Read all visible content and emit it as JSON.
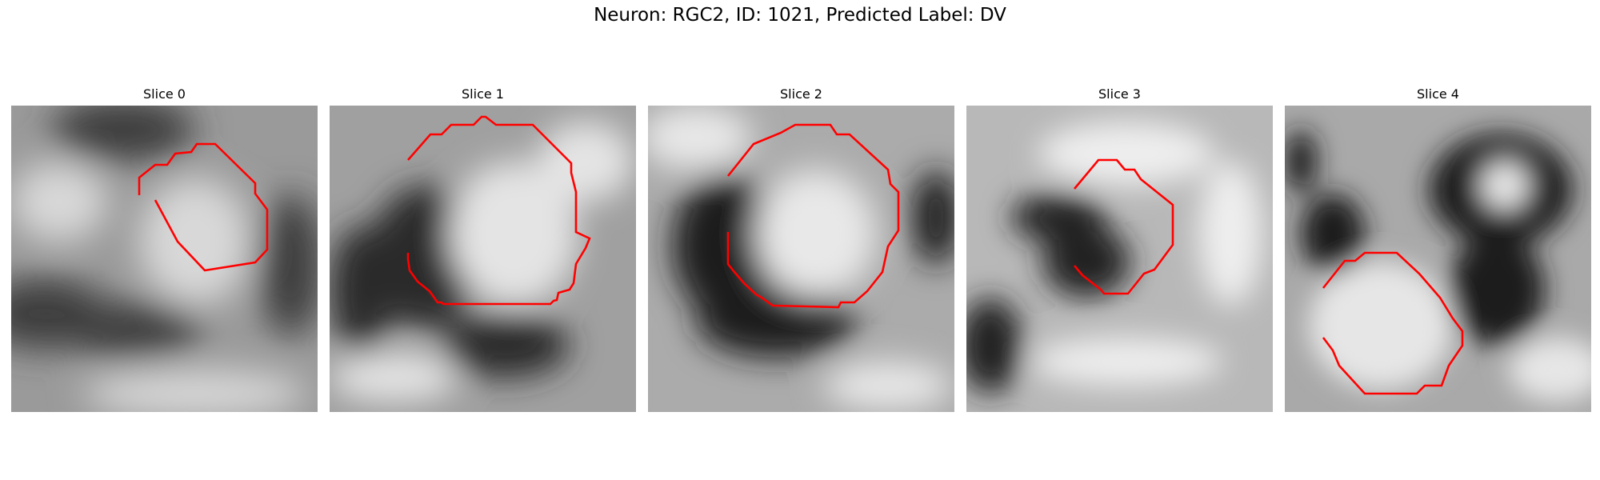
{
  "figure": {
    "title": "Neuron: RGC2, ID: 1021, Predicted Label: DV"
  },
  "panels": [
    {
      "title": "Slice 0",
      "bg": "#9a9a9a",
      "dark": "#3c3c3c",
      "light": "#d8d8d8"
    },
    {
      "title": "Slice 1",
      "bg": "#a0a0a0",
      "dark": "#2c2c2c",
      "light": "#e4e4e4"
    },
    {
      "title": "Slice 2",
      "bg": "#ababab",
      "dark": "#1e1e1e",
      "light": "#e8e8e8"
    },
    {
      "title": "Slice 3",
      "bg": "#b8b8b8",
      "dark": "#202020",
      "light": "#eeeeee"
    },
    {
      "title": "Slice 4",
      "bg": "#a9a9a9",
      "dark": "#1c1c1c",
      "light": "#e6e6e6"
    }
  ],
  "contour_color": "#ff0000"
}
